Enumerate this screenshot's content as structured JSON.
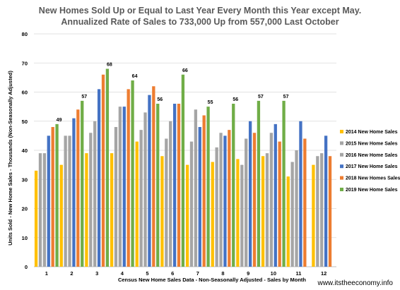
{
  "chart_data": {
    "type": "bar",
    "title": "New Homes Sold Up or Equal to Last Year  Every Month this Year except May.",
    "subtitle": "Annualized Rate of Sales to 733,000 Up from 557,000 Last October",
    "xlabel": "Census New Home Sales Data - Non-Seasonally Adjusted - Sales by Month",
    "ylabel": "Units Sold - New Home Sales - Thousands (Non-Seasonally Adjusted)",
    "ylim": [
      0,
      80
    ],
    "yticks": [
      0,
      10,
      20,
      30,
      40,
      50,
      60,
      70,
      80
    ],
    "grid": true,
    "legend_position": "right",
    "categories": [
      "1",
      "2",
      "3",
      "4",
      "5",
      "6",
      "7",
      "8",
      "9",
      "10",
      "11",
      "12"
    ],
    "series": [
      {
        "name": "2014 New Home Sales",
        "color": "#FFC000",
        "values": [
          33,
          35,
          39,
          39,
          43,
          38,
          35,
          36,
          37,
          38,
          31,
          35
        ]
      },
      {
        "name": "2015 New Home Sales",
        "color": "#A5A5A5",
        "values": [
          39,
          45,
          46,
          48,
          47,
          44,
          43,
          41,
          35,
          39,
          36,
          38
        ]
      },
      {
        "name": "2016 New Home Sales",
        "color": "#A5A5A5",
        "values": [
          39,
          45,
          50,
          55,
          53,
          50,
          54,
          46,
          44,
          46,
          40,
          39
        ]
      },
      {
        "name": "2017 New Home Sales",
        "color": "#4472C4",
        "values": [
          45,
          51,
          61,
          55,
          59,
          56,
          48,
          45,
          50,
          49,
          50,
          45
        ]
      },
      {
        "name": "2018 New Homes Sales",
        "color": "#ED7D31",
        "values": [
          48,
          54,
          66,
          61,
          62,
          56,
          52,
          47,
          46,
          43,
          44,
          38
        ]
      },
      {
        "name": "2019 New Home Sales",
        "color": "#70AD47",
        "values": [
          49,
          57,
          68,
          64,
          56,
          66,
          55,
          56,
          57,
          57,
          null,
          null
        ]
      }
    ],
    "data_labels": [
      49,
      57,
      68,
      64,
      56,
      66,
      55,
      56,
      57,
      57
    ]
  },
  "watermark": "www.itstheeconomy.info"
}
